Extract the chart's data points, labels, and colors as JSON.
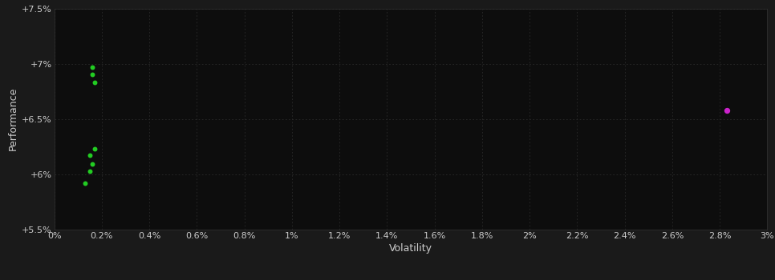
{
  "background_color": "#1a1a1a",
  "plot_bg_color": "#0d0d0d",
  "grid_color": "#2a2a2a",
  "xlabel": "Volatility",
  "ylabel": "Performance",
  "xlim": [
    0,
    0.03
  ],
  "ylim": [
    0.055,
    0.075
  ],
  "xtick_labels": [
    "0%",
    "0.2%",
    "0.4%",
    "0.6%",
    "0.8%",
    "1%",
    "1.2%",
    "1.4%",
    "1.6%",
    "1.8%",
    "2%",
    "2.2%",
    "2.4%",
    "2.6%",
    "2.8%",
    "3%"
  ],
  "xtick_values": [
    0.0,
    0.002,
    0.004,
    0.006,
    0.008,
    0.01,
    0.012,
    0.014,
    0.016,
    0.018,
    0.02,
    0.022,
    0.024,
    0.026,
    0.028,
    0.03
  ],
  "ytick_labels": [
    "+5.5%",
    "+6%",
    "+6.5%",
    "+7%",
    "+7.5%"
  ],
  "ytick_values": [
    0.055,
    0.06,
    0.065,
    0.07,
    0.075
  ],
  "green_points": [
    [
      0.0016,
      0.0697
    ],
    [
      0.0016,
      0.069
    ],
    [
      0.0017,
      0.0683
    ],
    [
      0.0017,
      0.0623
    ],
    [
      0.0015,
      0.0617
    ],
    [
      0.0016,
      0.0609
    ],
    [
      0.0015,
      0.0603
    ],
    [
      0.0013,
      0.0592
    ]
  ],
  "magenta_points": [
    [
      0.0283,
      0.0658
    ]
  ],
  "green_color": "#22cc22",
  "magenta_color": "#cc22cc",
  "point_size": 18,
  "magenta_point_size": 28,
  "tick_fontsize": 8,
  "label_fontsize": 9,
  "tick_color": "#cccccc",
  "label_color": "#cccccc"
}
